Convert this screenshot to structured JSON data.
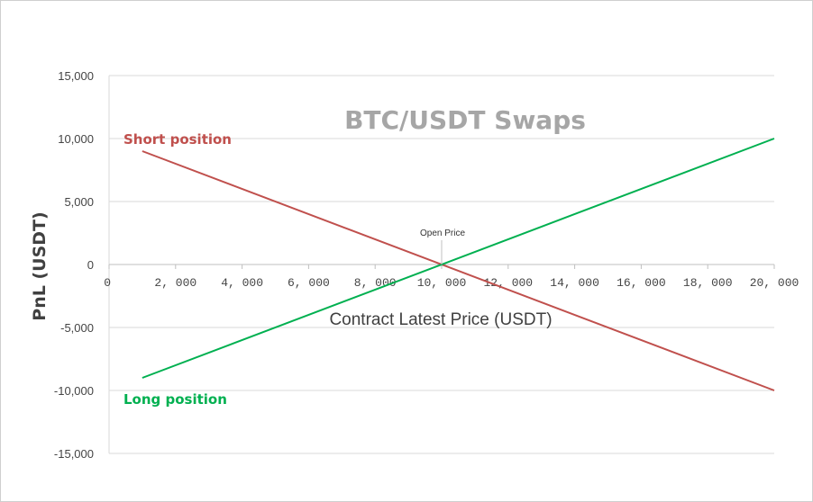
{
  "chart_data": {
    "type": "line",
    "title": "BTC/USDT Swaps",
    "xlabel": "Contract Latest Price (USDT)",
    "ylabel": "PnL (USDT)",
    "xlim": [
      0,
      20000
    ],
    "ylim": [
      -15000,
      15000
    ],
    "x_ticks": [
      "0",
      "2, 000",
      "4, 000",
      "6, 000",
      "8, 000",
      "10, 000",
      "12, 000",
      "14, 000",
      "16, 000",
      "18, 000",
      "20, 000"
    ],
    "x_tick_values": [
      0,
      2000,
      4000,
      6000,
      8000,
      10000,
      12000,
      14000,
      16000,
      18000,
      20000
    ],
    "y_ticks": [
      "15,000",
      "10,000",
      "5,000",
      "0",
      "-5,000",
      "-10,000",
      "-15,000"
    ],
    "y_tick_values": [
      15000,
      10000,
      5000,
      0,
      -5000,
      -10000,
      -15000
    ],
    "grid": true,
    "series": [
      {
        "name": "Short position",
        "color": "#c0504d",
        "x": [
          1000,
          20000
        ],
        "y": [
          9000,
          -10000
        ]
      },
      {
        "name": "Long position",
        "color": "#00b050",
        "x": [
          1000,
          20000
        ],
        "y": [
          -9000,
          10000
        ]
      }
    ],
    "annotations": [
      {
        "text": "Open Price",
        "x": 10000,
        "y": 0
      }
    ]
  }
}
